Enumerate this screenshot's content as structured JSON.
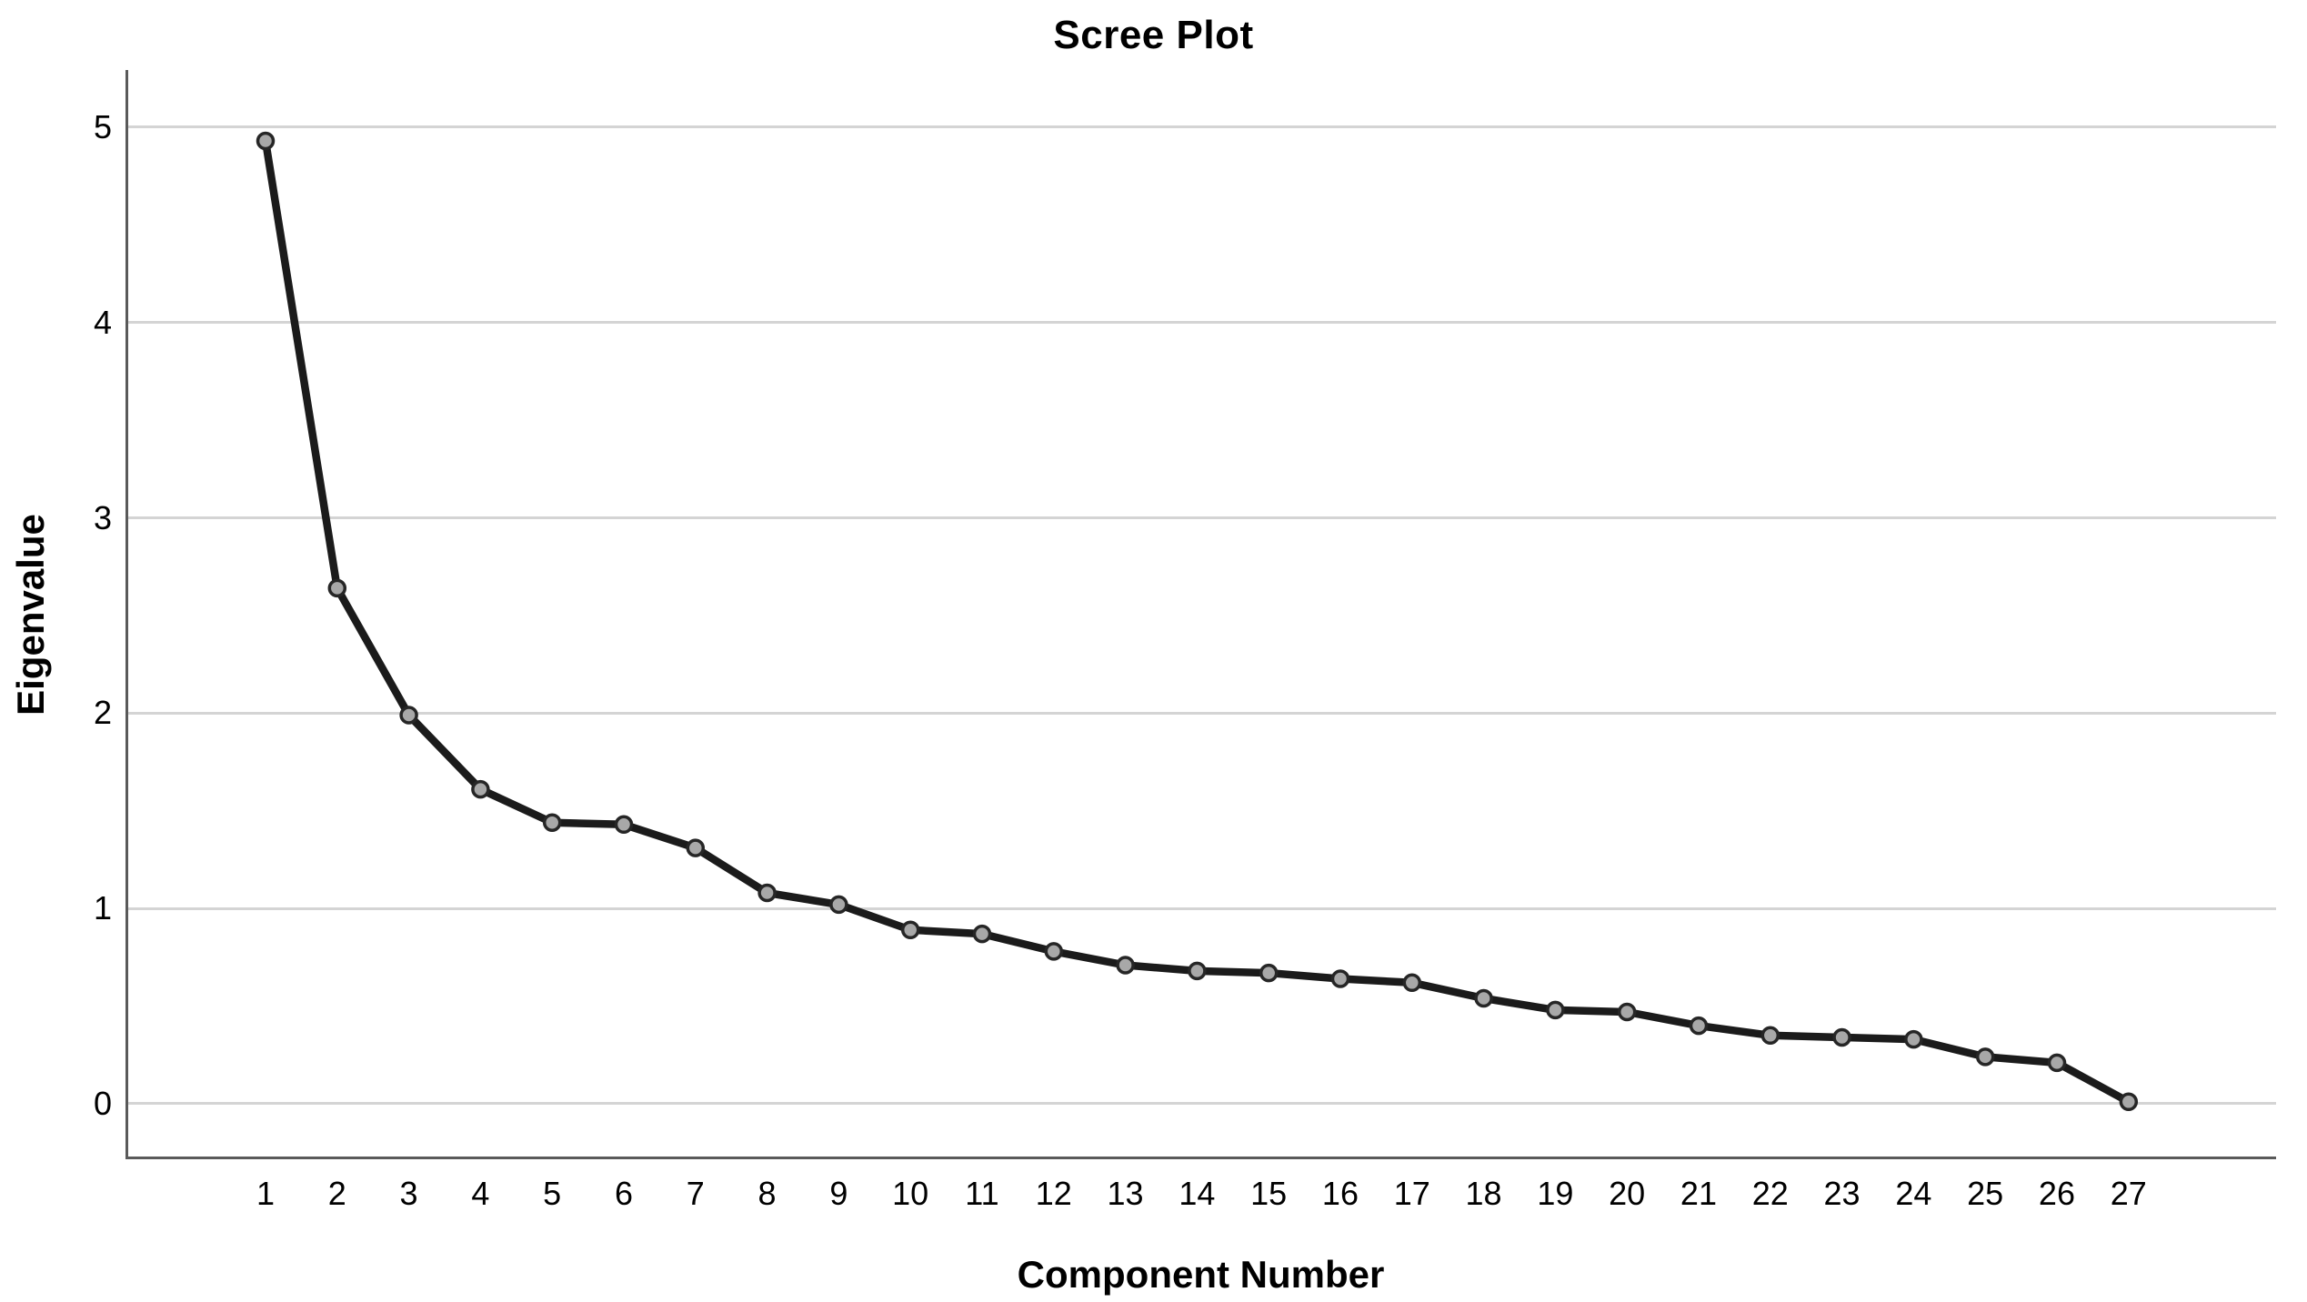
{
  "chart_data": {
    "type": "line",
    "title": "Scree Plot",
    "xlabel": "Component Number",
    "ylabel": "Eigenvalue",
    "x": [
      1,
      2,
      3,
      4,
      5,
      6,
      7,
      8,
      9,
      10,
      11,
      12,
      13,
      14,
      15,
      16,
      17,
      18,
      19,
      20,
      21,
      22,
      23,
      24,
      25,
      26,
      27
    ],
    "values": [
      4.93,
      2.64,
      1.99,
      1.61,
      1.44,
      1.43,
      1.31,
      1.08,
      1.02,
      0.89,
      0.87,
      0.78,
      0.71,
      0.68,
      0.67,
      0.64,
      0.62,
      0.54,
      0.48,
      0.47,
      0.4,
      0.35,
      0.34,
      0.33,
      0.24,
      0.21,
      0.01
    ],
    "yticks": [
      0,
      1,
      2,
      3,
      4,
      5
    ],
    "ylim": [
      -0.284,
      5.293
    ],
    "xlim": [
      -0.954,
      29.059
    ],
    "grid": "horizontal",
    "legend": "none",
    "colors": {
      "line": "#1b1b1b",
      "marker_fill": "#a8a8a8",
      "marker_stroke": "#262626",
      "grid": "#d4d4d4",
      "axis": "#5a5a5a",
      "text": "#000000",
      "background": "#ffffff"
    }
  }
}
